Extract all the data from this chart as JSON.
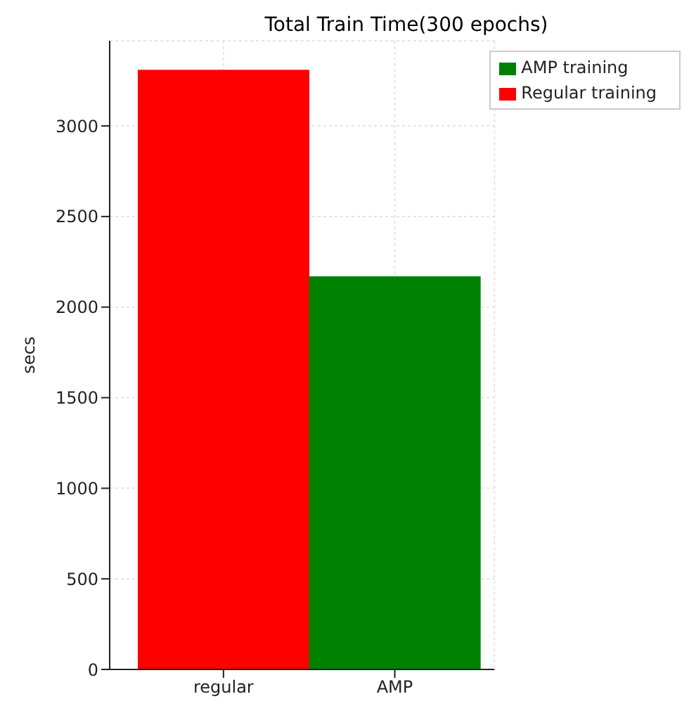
{
  "chart_data": {
    "type": "bar",
    "title": "Total Train Time(300 epochs)",
    "ylabel": "secs",
    "categories": [
      "regular",
      "AMP"
    ],
    "series": [
      {
        "name": "Regular training",
        "color": "#ff0000",
        "values": [
          3310,
          null
        ]
      },
      {
        "name": "AMP training",
        "color": "#008000",
        "values": [
          null,
          2170
        ]
      }
    ],
    "ylim": [
      0,
      3470
    ],
    "yticks": [
      0,
      500,
      1000,
      1500,
      2000,
      2500,
      3000
    ],
    "grid": true,
    "legend": "top right"
  }
}
